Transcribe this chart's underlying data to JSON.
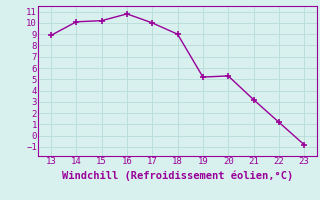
{
  "x": [
    13,
    14,
    15,
    16,
    17,
    18,
    19,
    20,
    21,
    22,
    23
  ],
  "y": [
    8.9,
    10.1,
    10.2,
    10.8,
    10.0,
    9.0,
    5.2,
    5.3,
    3.2,
    1.2,
    -0.8
  ],
  "line_color": "#990099",
  "marker": "+",
  "marker_size": 5,
  "marker_linewidth": 1.2,
  "line_width": 1.0,
  "xlabel": "Windchill (Refroidissement éolien,°C)",
  "xlim": [
    12.5,
    23.5
  ],
  "ylim": [
    -1.8,
    11.5
  ],
  "yticks": [
    -1,
    0,
    1,
    2,
    3,
    4,
    5,
    6,
    7,
    8,
    9,
    10,
    11
  ],
  "xticks": [
    13,
    14,
    15,
    16,
    17,
    18,
    19,
    20,
    21,
    22,
    23
  ],
  "background_color": "#d8f0ee",
  "grid_color": "#b8dcd8",
  "tick_label_color": "#990099",
  "xlabel_color": "#990099",
  "xlabel_fontsize": 7.5,
  "tick_fontsize": 6.5,
  "spine_color": "#990099"
}
